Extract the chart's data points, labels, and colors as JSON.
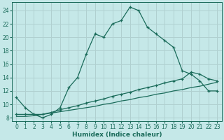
{
  "xlabel": "Humidex (Indice chaleur)",
  "bg_color": "#c5e8e8",
  "grid_color": "#b0d0d0",
  "line_color": "#1a6b5a",
  "xlim": [
    -0.5,
    23.5
  ],
  "ylim": [
    7.5,
    25.2
  ],
  "xticks": [
    0,
    1,
    2,
    3,
    4,
    5,
    6,
    7,
    8,
    9,
    10,
    11,
    12,
    13,
    14,
    15,
    16,
    17,
    18,
    19,
    20,
    21,
    22,
    23
  ],
  "yticks": [
    8,
    10,
    12,
    14,
    16,
    18,
    20,
    22,
    24
  ],
  "line1_x": [
    0,
    1,
    2,
    3,
    4,
    5,
    6,
    7,
    8,
    9,
    10,
    11,
    12,
    13,
    14,
    15,
    16,
    17,
    18,
    19,
    20,
    21,
    22,
    23
  ],
  "line1_y": [
    11,
    9.5,
    8.5,
    8,
    8.5,
    9.5,
    12.5,
    14,
    17.5,
    20.5,
    20,
    22,
    22.5,
    24.5,
    24,
    21.5,
    20.5,
    19.5,
    18.5,
    15,
    14.5,
    13.5,
    12,
    12
  ],
  "line2_x": [
    0,
    1,
    2,
    3,
    4,
    5,
    6,
    7,
    8,
    9,
    10,
    11,
    12,
    13,
    14,
    15,
    16,
    17,
    18,
    19,
    20,
    21,
    22,
    23
  ],
  "line2_y": [
    8.5,
    8.5,
    8.5,
    8.5,
    8.8,
    9.2,
    9.5,
    9.8,
    10.2,
    10.5,
    10.8,
    11.2,
    11.5,
    11.8,
    12.2,
    12.5,
    12.8,
    13.2,
    13.5,
    13.8,
    14.8,
    14.5,
    13.8,
    13.5
  ],
  "line3_x": [
    0,
    1,
    2,
    3,
    4,
    5,
    6,
    7,
    8,
    9,
    10,
    11,
    12,
    13,
    14,
    15,
    16,
    17,
    18,
    19,
    20,
    21,
    22,
    23
  ],
  "line3_y": [
    8.2,
    8.2,
    8.3,
    8.5,
    8.7,
    8.9,
    9.1,
    9.3,
    9.5,
    9.7,
    10.0,
    10.2,
    10.5,
    10.7,
    11.0,
    11.2,
    11.5,
    11.7,
    12.0,
    12.2,
    12.5,
    12.7,
    13.0,
    13.3
  ]
}
